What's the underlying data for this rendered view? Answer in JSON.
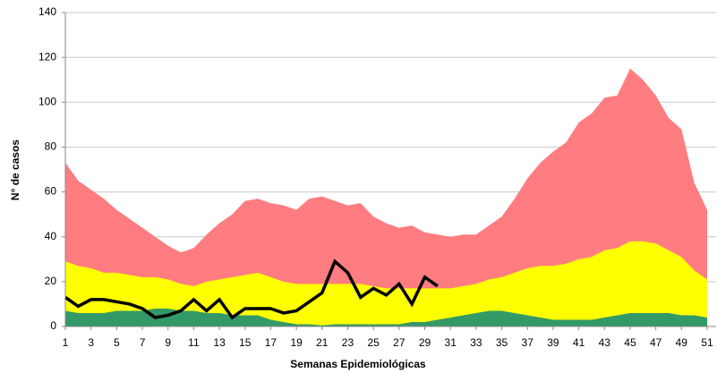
{
  "chart_data": {
    "type": "area",
    "x_label": "Semanas Epidemiológicas",
    "y_label": "N° de casos",
    "x": [
      1,
      2,
      3,
      4,
      5,
      6,
      7,
      8,
      9,
      10,
      11,
      12,
      13,
      14,
      15,
      16,
      17,
      18,
      19,
      20,
      21,
      22,
      23,
      24,
      25,
      26,
      27,
      28,
      29,
      30,
      31,
      32,
      33,
      34,
      35,
      36,
      37,
      38,
      39,
      40,
      41,
      42,
      43,
      44,
      45,
      46,
      47,
      48,
      49,
      50,
      51
    ],
    "xlim": [
      1,
      51
    ],
    "xticks": [
      1,
      3,
      5,
      7,
      9,
      11,
      13,
      15,
      17,
      19,
      21,
      23,
      25,
      27,
      29,
      31,
      33,
      35,
      37,
      39,
      41,
      43,
      45,
      47,
      49,
      51
    ],
    "ylim": [
      0,
      140
    ],
    "yticks": [
      0,
      20,
      40,
      60,
      80,
      100,
      120,
      140
    ],
    "grid": true,
    "series": [
      {
        "type": "area",
        "color": "#ff7c80",
        "values": [
          73,
          65,
          61,
          57,
          52,
          48,
          44,
          40,
          36,
          33,
          35,
          41,
          46,
          50,
          56,
          57,
          55,
          54,
          52,
          57,
          58,
          56,
          54,
          55,
          49,
          46,
          44,
          45,
          42,
          41,
          40,
          41,
          41,
          45,
          49,
          57,
          66,
          73,
          78,
          82,
          91,
          95,
          102,
          103,
          115,
          110,
          103,
          93,
          88,
          64,
          52
        ]
      },
      {
        "type": "area",
        "color": "#ffff00",
        "values": [
          29,
          27,
          26,
          24,
          24,
          23,
          22,
          22,
          21,
          19,
          18,
          20,
          21,
          22,
          23,
          24,
          22,
          20,
          19,
          19,
          19,
          19,
          19,
          19,
          18,
          17,
          17,
          17,
          17,
          17,
          17,
          18,
          19,
          21,
          22,
          24,
          26,
          27,
          27,
          28,
          30,
          31,
          34,
          35,
          38,
          38,
          37,
          34,
          31,
          25,
          21
        ]
      },
      {
        "type": "area",
        "color": "#339966",
        "values": [
          7,
          6,
          6,
          6,
          7,
          7,
          7,
          8,
          8,
          7,
          7,
          6,
          6,
          5,
          5,
          5,
          3,
          2,
          1,
          1,
          0.5,
          1,
          1,
          1,
          1,
          1,
          1,
          2,
          2,
          3,
          4,
          5,
          6,
          7,
          7,
          6,
          5,
          4,
          3,
          3,
          3,
          3,
          4,
          5,
          6,
          6,
          6,
          6,
          5,
          5,
          4
        ]
      },
      {
        "type": "line",
        "color": "#000000",
        "values": [
          13,
          9,
          12,
          12,
          11,
          10,
          8,
          4,
          5,
          7,
          12,
          7,
          12,
          4,
          8,
          8,
          8,
          6,
          7,
          11,
          15,
          29,
          24,
          13,
          17,
          14,
          19,
          10,
          22,
          18,
          null,
          null,
          null,
          null,
          null,
          null,
          null,
          null,
          null,
          null,
          null,
          null,
          null,
          null,
          null,
          null,
          null,
          null,
          null,
          null,
          null
        ]
      }
    ]
  }
}
